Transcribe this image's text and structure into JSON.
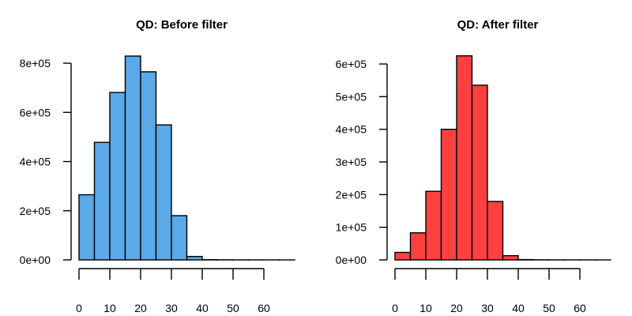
{
  "chart_data": [
    {
      "type": "bar",
      "title": "QD: Before filter",
      "color": "#5aa9e8",
      "bin_edges": [
        0,
        5,
        10,
        15,
        20,
        25,
        30,
        35,
        40,
        45,
        50,
        55,
        60,
        65,
        70
      ],
      "values": [
        265000,
        478000,
        681000,
        829000,
        765000,
        549000,
        180000,
        14000,
        1000,
        400,
        200,
        100,
        50,
        20
      ],
      "xticks": [
        0,
        10,
        20,
        30,
        40,
        50,
        60
      ],
      "xlim": [
        0,
        60
      ],
      "yticks": [
        0,
        200000,
        400000,
        600000,
        800000
      ],
      "ytick_labels": [
        "0e+00",
        "2e+05",
        "4e+05",
        "6e+05",
        "8e+05"
      ],
      "ylim": [
        0,
        800000
      ],
      "xlabel": "",
      "ylabel": ""
    },
    {
      "type": "bar",
      "title": "QD: After filter",
      "color": "#ff4040",
      "bin_edges": [
        0,
        5,
        10,
        15,
        20,
        25,
        30,
        35,
        40,
        45,
        50,
        55,
        60,
        65,
        70
      ],
      "values": [
        23000,
        83000,
        210000,
        400000,
        625000,
        535000,
        179000,
        13000,
        1000,
        400,
        200,
        100,
        50,
        20
      ],
      "xticks": [
        0,
        10,
        20,
        30,
        40,
        50,
        60
      ],
      "xlim": [
        0,
        60
      ],
      "yticks": [
        0,
        100000,
        200000,
        300000,
        400000,
        500000,
        600000
      ],
      "ytick_labels": [
        "0e+00",
        "1e+05",
        "2e+05",
        "3e+05",
        "4e+05",
        "5e+05",
        "6e+05"
      ],
      "ylim": [
        0,
        600000
      ],
      "xlabel": "",
      "ylabel": ""
    }
  ]
}
